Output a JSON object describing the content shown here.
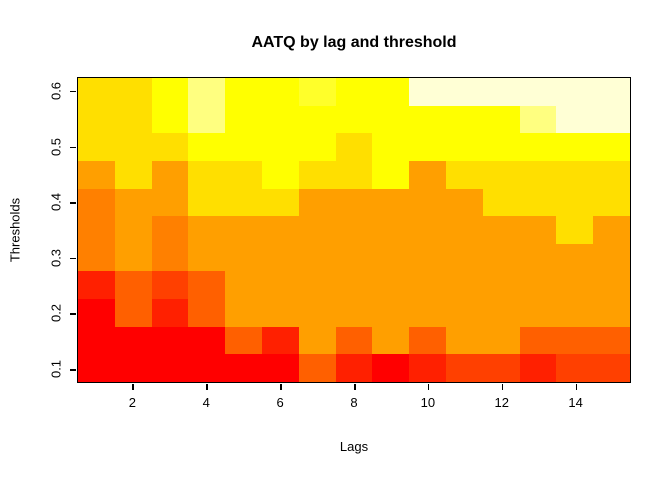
{
  "chart_data": {
    "type": "heatmap",
    "title": "AATQ by lag and threshold",
    "xlabel": "Lags",
    "ylabel": "Thresholds",
    "x_tick_values": [
      2,
      4,
      6,
      8,
      10,
      12,
      14
    ],
    "x_tick_labels": [
      "2",
      "4",
      "6",
      "8",
      "10",
      "12",
      "14"
    ],
    "y_tick_values": [
      0.1,
      0.2,
      0.3,
      0.4,
      0.5,
      0.6
    ],
    "y_tick_labels": [
      "0.1",
      "0.2",
      "0.3",
      "0.4",
      "0.5",
      "0.6"
    ],
    "x_domain": [
      0.5,
      15.5
    ],
    "y_domain": [
      0.075,
      0.625
    ],
    "lags": [
      1,
      2,
      3,
      4,
      5,
      6,
      7,
      8,
      9,
      10,
      11,
      12,
      13,
      14,
      15
    ],
    "thresholds": [
      0.1,
      0.15,
      0.2,
      0.25,
      0.3,
      0.35,
      0.4,
      0.45,
      0.5,
      0.55,
      0.6
    ],
    "palette_name": "heat-colors",
    "palette": [
      "#FF0000",
      "#FF2000",
      "#FF4000",
      "#FF6000",
      "#FF8000",
      "#FF9F00",
      "#FFBF00",
      "#FFDF00",
      "#FFFF00",
      "#FFFF2A",
      "#FFFF80",
      "#FFFFD5"
    ],
    "grid_on": false,
    "legend": "none",
    "cell_colors_rows_top_to_bottom": [
      [
        "#FFDF00",
        "#FFDF00",
        "#FFFF00",
        "#FFFF80",
        "#FFFF00",
        "#FFFF00",
        "#FFFF2A",
        "#FFFF00",
        "#FFFF00",
        "#FFFFD5",
        "#FFFFD5",
        "#FFFFD5",
        "#FFFFD5",
        "#FFFFD5",
        "#FFFFD5"
      ],
      [
        "#FFDF00",
        "#FFDF00",
        "#FFFF00",
        "#FFFF80",
        "#FFFF00",
        "#FFFF00",
        "#FFFF00",
        "#FFFF00",
        "#FFFF00",
        "#FFFF00",
        "#FFFF00",
        "#FFFF00",
        "#FFFF80",
        "#FFFFD5",
        "#FFFFD5"
      ],
      [
        "#FFDF00",
        "#FFDF00",
        "#FFDF00",
        "#FFFF00",
        "#FFFF00",
        "#FFFF00",
        "#FFFF00",
        "#FFDF00",
        "#FFFF00",
        "#FFFF00",
        "#FFFF00",
        "#FFFF00",
        "#FFFF00",
        "#FFFF00",
        "#FFFF00"
      ],
      [
        "#FF9F00",
        "#FFDF00",
        "#FF9F00",
        "#FFDF00",
        "#FFDF00",
        "#FFFF00",
        "#FFDF00",
        "#FFDF00",
        "#FFFF00",
        "#FF9F00",
        "#FFDF00",
        "#FFDF00",
        "#FFDF00",
        "#FFDF00",
        "#FFDF00"
      ],
      [
        "#FF8000",
        "#FF9F00",
        "#FF9F00",
        "#FFDF00",
        "#FFDF00",
        "#FFDF00",
        "#FF9F00",
        "#FF9F00",
        "#FF9F00",
        "#FF9F00",
        "#FF9F00",
        "#FFDF00",
        "#FFDF00",
        "#FFDF00",
        "#FFDF00"
      ],
      [
        "#FF8000",
        "#FF9F00",
        "#FF8000",
        "#FF9F00",
        "#FF9F00",
        "#FF9F00",
        "#FF9F00",
        "#FF9F00",
        "#FF9F00",
        "#FF9F00",
        "#FF9F00",
        "#FF9F00",
        "#FF9F00",
        "#FFDF00",
        "#FF9F00"
      ],
      [
        "#FF8000",
        "#FF9F00",
        "#FF8000",
        "#FF9F00",
        "#FF9F00",
        "#FF9F00",
        "#FF9F00",
        "#FF9F00",
        "#FF9F00",
        "#FF9F00",
        "#FF9F00",
        "#FF9F00",
        "#FF9F00",
        "#FF9F00",
        "#FF9F00"
      ],
      [
        "#FF2000",
        "#FF6000",
        "#FF4000",
        "#FF6000",
        "#FF9F00",
        "#FF9F00",
        "#FF9F00",
        "#FF9F00",
        "#FF9F00",
        "#FF9F00",
        "#FF9F00",
        "#FF9F00",
        "#FF9F00",
        "#FF9F00",
        "#FF9F00"
      ],
      [
        "#FF0000",
        "#FF6000",
        "#FF2000",
        "#FF6000",
        "#FF9F00",
        "#FF9F00",
        "#FF9F00",
        "#FF9F00",
        "#FF9F00",
        "#FF9F00",
        "#FF9F00",
        "#FF9F00",
        "#FF9F00",
        "#FF9F00",
        "#FF9F00"
      ],
      [
        "#FF0000",
        "#FF0000",
        "#FF0000",
        "#FF0000",
        "#FF6000",
        "#FF2000",
        "#FF9F00",
        "#FF6000",
        "#FF9F00",
        "#FF6000",
        "#FF9F00",
        "#FF9F00",
        "#FF6000",
        "#FF6000",
        "#FF6000"
      ],
      [
        "#FF0000",
        "#FF0000",
        "#FF0000",
        "#FF0000",
        "#FF0000",
        "#FF0000",
        "#FF6000",
        "#FF2000",
        "#FF0000",
        "#FF2000",
        "#FF4000",
        "#FF4000",
        "#FF2000",
        "#FF4000",
        "#FF4000"
      ]
    ]
  }
}
